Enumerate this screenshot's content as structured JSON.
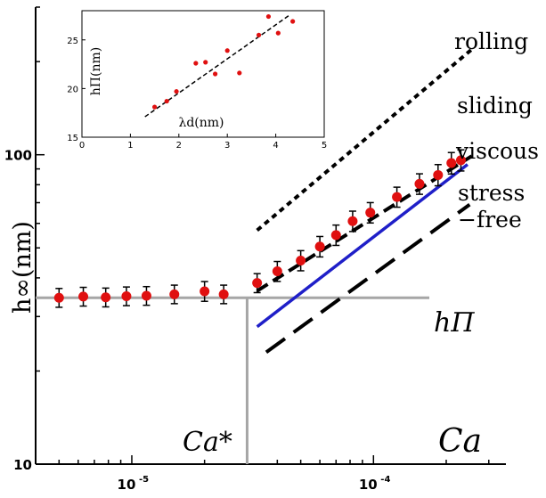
{
  "chart_data": [
    {
      "type": "scatter",
      "xscale": "log",
      "yscale": "log",
      "xlim": [
        4e-06,
        0.00033
      ],
      "ylim": [
        10,
        300
      ],
      "xlabel": "Ca",
      "ylabel": "h∞(nm)",
      "xticks": [
        {
          "value": 1e-05,
          "label": "10",
          "exp": "-5"
        },
        {
          "value": 0.0001,
          "label": "10",
          "exp": "-4"
        }
      ],
      "yticks": [
        {
          "value": 10,
          "label": "10"
        },
        {
          "value": 100,
          "label": "100"
        }
      ],
      "points": [
        {
          "x": 5e-06,
          "y": 34.5,
          "err": 1.5
        },
        {
          "x": 6.3e-06,
          "y": 34.8,
          "err": 1.5
        },
        {
          "x": 7.8e-06,
          "y": 34.6,
          "err": 1.5
        },
        {
          "x": 9.5e-06,
          "y": 34.9,
          "err": 1.5
        },
        {
          "x": 1.15e-05,
          "y": 35.0,
          "err": 1.5
        },
        {
          "x": 1.5e-05,
          "y": 35.4,
          "err": 1.5
        },
        {
          "x": 2e-05,
          "y": 36.2,
          "err": 1.7
        },
        {
          "x": 2.4e-05,
          "y": 35.4,
          "err": 1.5
        },
        {
          "x": 3.3e-05,
          "y": 38.5,
          "err": 1.7
        },
        {
          "x": 4e-05,
          "y": 42.0,
          "err": 2.0
        },
        {
          "x": 5e-05,
          "y": 45.5,
          "err": 2.2
        },
        {
          "x": 6e-05,
          "y": 50.5,
          "err": 2.5
        },
        {
          "x": 7e-05,
          "y": 55.0,
          "err": 2.7
        },
        {
          "x": 8.2e-05,
          "y": 61.0,
          "err": 3.0
        },
        {
          "x": 9.7e-05,
          "y": 65.0,
          "err": 3.2
        },
        {
          "x": 0.000125,
          "y": 73.0,
          "err": 3.5
        },
        {
          "x": 0.000155,
          "y": 80.5,
          "err": 4.0
        },
        {
          "x": 0.000185,
          "y": 86.0,
          "err": 4.5
        },
        {
          "x": 0.00021,
          "y": 94.0,
          "err": 5.0
        },
        {
          "x": 0.00023,
          "y": 96.0,
          "err": 5.0
        }
      ],
      "lines": [
        {
          "name": "rolling",
          "style": "dotted",
          "color": "#000000",
          "from": [
            3.3e-05,
            57.0
          ],
          "to": [
            0.000255,
            219.0
          ]
        },
        {
          "name": "sliding",
          "style": "dashed",
          "color": "#000000",
          "from": [
            3.3e-05,
            36.3
          ],
          "to": [
            0.000255,
            99.0
          ]
        },
        {
          "name": "viscous",
          "style": "solid",
          "color": "#1f1fc8",
          "from": [
            3.3e-05,
            27.8
          ],
          "to": [
            0.000245,
            93.0
          ]
        },
        {
          "name": "stress −free",
          "style": "longdash",
          "color": "#000000",
          "from": [
            3.6e-05,
            23.0
          ],
          "to": [
            0.00025,
            69.0
          ]
        }
      ],
      "reference_lines": [
        {
          "label": "hΠ",
          "orientation": "horizontal",
          "y": 34.5,
          "color": "#a6a6a6"
        },
        {
          "label": "Ca*",
          "orientation": "vertical",
          "x": 3e-05,
          "color": "#a6a6a6"
        }
      ],
      "annotations": [
        {
          "text": "rolling"
        },
        {
          "text": "sliding"
        },
        {
          "text": "viscous",
          "color": "#1f1fc8"
        },
        {
          "text": "stress"
        },
        {
          "text": "−free"
        },
        {
          "text": "Ca"
        },
        {
          "text": "Ca*"
        },
        {
          "text": "hΠ"
        }
      ],
      "grid": false,
      "marker_color": "#e01010"
    },
    {
      "type": "scatter",
      "inset": true,
      "xlim": [
        0,
        5
      ],
      "ylim": [
        15,
        28
      ],
      "xlabel": "λd(nm)",
      "ylabel": "hΠ(nm)",
      "xticks": [
        "0",
        "1",
        "2",
        "3",
        "4",
        "5"
      ],
      "yticks": [
        "15",
        "20",
        "25"
      ],
      "points": [
        {
          "x": 1.5,
          "y": 18.1
        },
        {
          "x": 1.75,
          "y": 18.7
        },
        {
          "x": 1.95,
          "y": 19.7
        },
        {
          "x": 2.35,
          "y": 22.6
        },
        {
          "x": 2.55,
          "y": 22.7
        },
        {
          "x": 2.75,
          "y": 21.5
        },
        {
          "x": 3.0,
          "y": 23.9
        },
        {
          "x": 3.25,
          "y": 21.6
        },
        {
          "x": 3.65,
          "y": 25.5
        },
        {
          "x": 3.85,
          "y": 27.4
        },
        {
          "x": 4.05,
          "y": 25.7
        },
        {
          "x": 4.35,
          "y": 26.9
        }
      ],
      "fit": {
        "from": [
          1.3,
          17.1
        ],
        "to": [
          4.3,
          27.6
        ],
        "style": "dashed"
      },
      "marker_color": "#e01010"
    }
  ]
}
